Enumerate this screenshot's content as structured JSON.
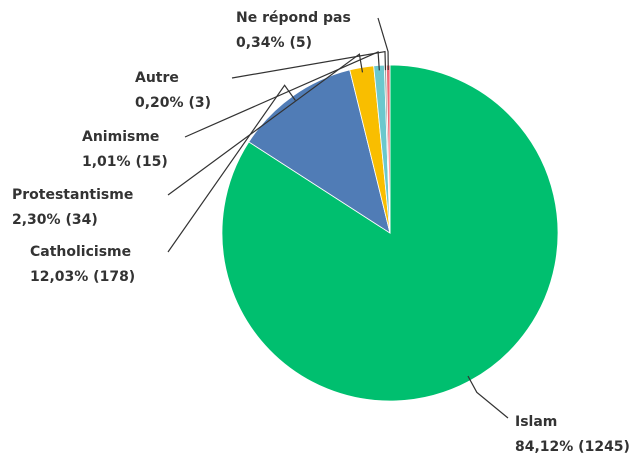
{
  "chart_data": {
    "type": "pie",
    "categories": [
      "Islam",
      "Catholicisme",
      "Protestantisme",
      "Animisme",
      "Autre",
      "Ne répond pas"
    ],
    "values": [
      84.12,
      12.03,
      2.3,
      1.01,
      0.2,
      0.34
    ],
    "value_labels": [
      "84,12% (1245)",
      "12,03% (178)",
      "2,30% (34)",
      "1,01% (15)",
      "0,20% (3)",
      "0,34% (5)"
    ],
    "colors": [
      "#00bf6f",
      "#507cb6",
      "#f9be00",
      "#6bc8cd",
      "#a8a39d",
      "#f06b76"
    ]
  }
}
